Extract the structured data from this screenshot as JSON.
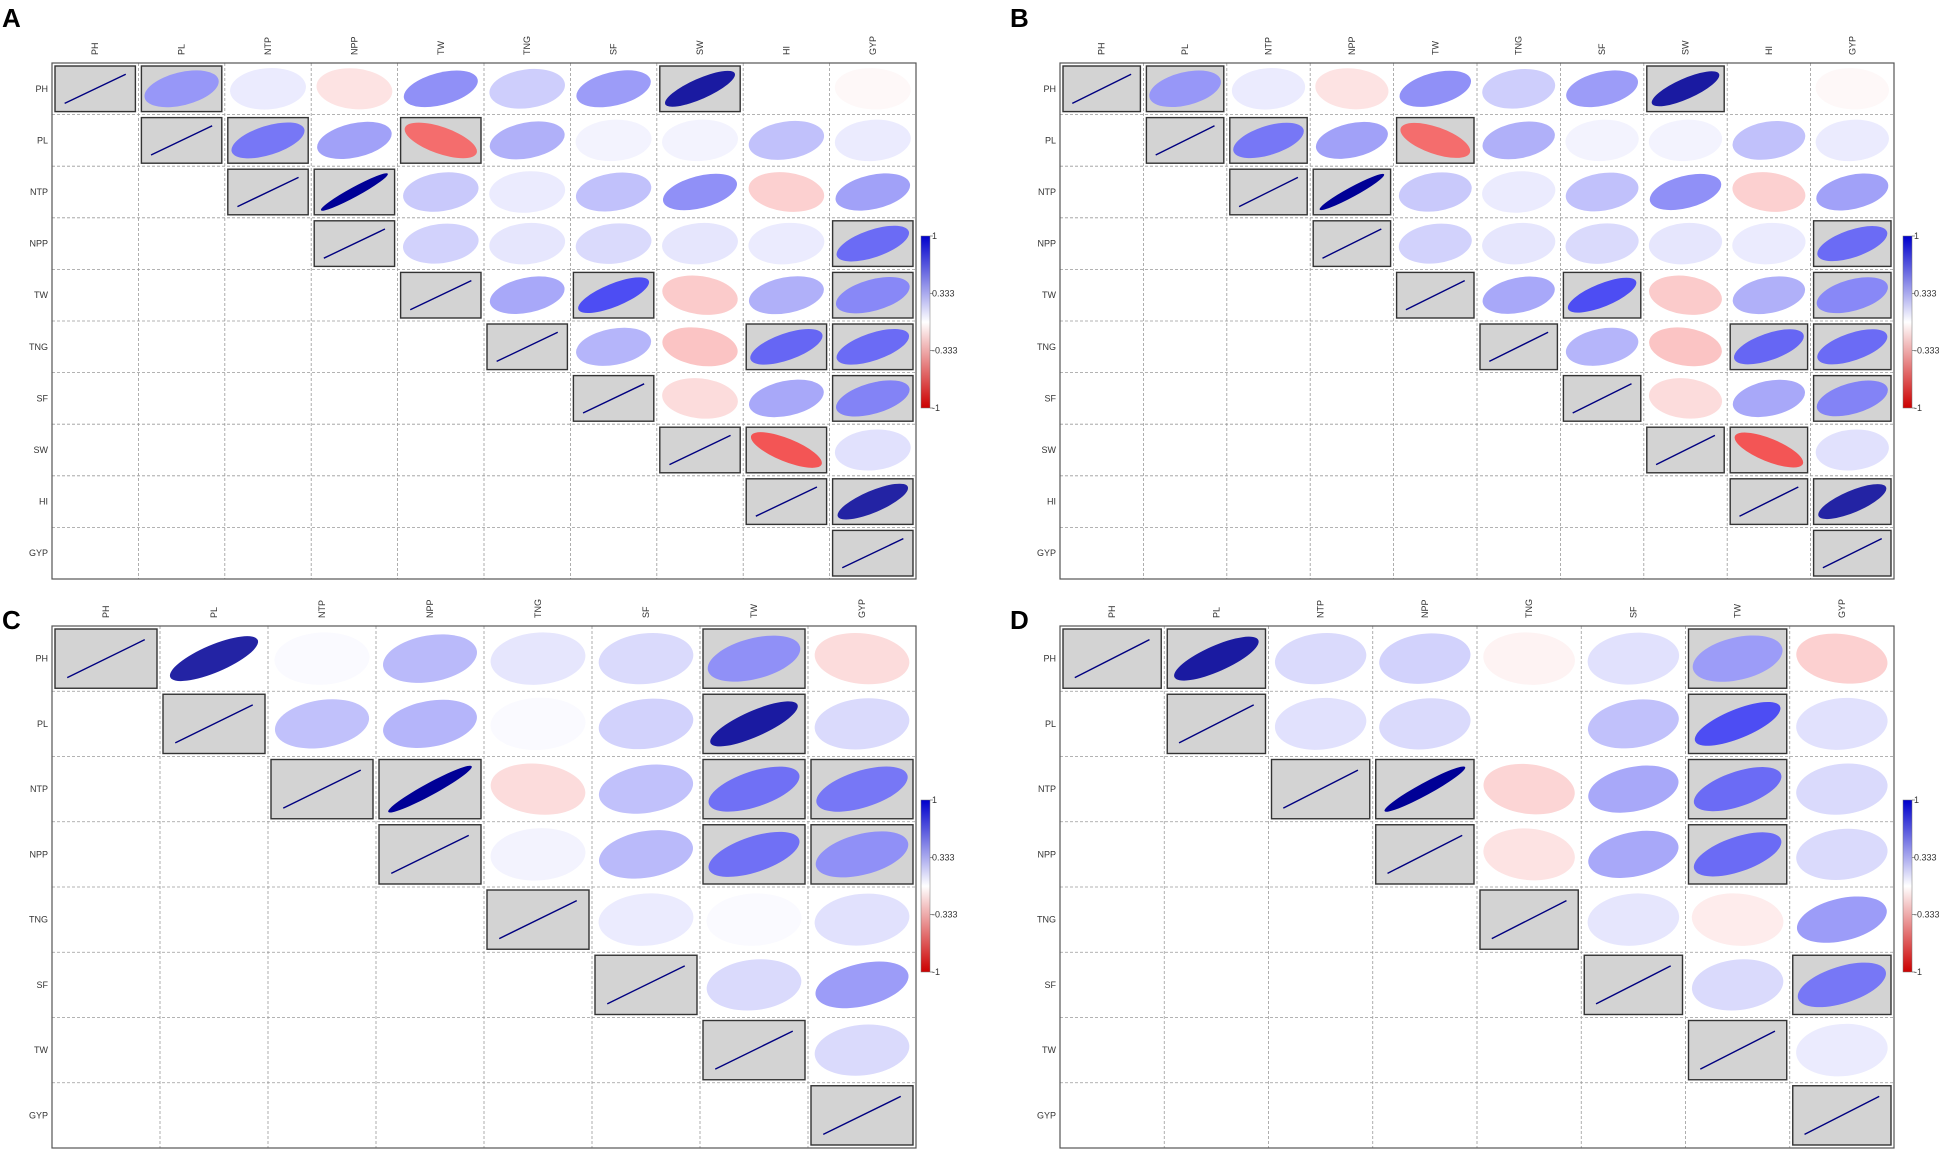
{
  "figure": {
    "panels": [
      {
        "letter": "A"
      },
      {
        "letter": "B"
      },
      {
        "letter": "C"
      },
      {
        "letter": "D"
      }
    ]
  },
  "colorbar": {
    "ticks": [
      "1",
      "0.333",
      "-0.333",
      "-1"
    ],
    "tick_values": [
      1,
      0.333,
      -0.333,
      -1
    ],
    "colors": {
      "high": "#0000cc",
      "mid": "#ffffff",
      "low": "#cc0000"
    }
  },
  "style": {
    "significant_box_fill": "#d3d3d3",
    "significant_box_stroke": "#333333",
    "diagonal_line_color": "#000080",
    "grid_line_color": "#9a9a9a"
  },
  "chart_data": [
    {
      "panel": "A",
      "type": "heatmap",
      "variables": [
        "PH",
        "PL",
        "NTP",
        "NPP",
        "TW",
        "TNG",
        "SF",
        "SW",
        "HI",
        "GYP"
      ],
      "matrix": [
        [
          1,
          0.42,
          0.08,
          -0.12,
          0.45,
          0.2,
          0.4,
          0.78,
          0.0,
          -0.03
        ],
        [
          null,
          1,
          0.55,
          0.38,
          -0.62,
          0.32,
          0.05,
          0.05,
          0.25,
          0.08
        ],
        [
          null,
          null,
          1,
          0.95,
          0.22,
          0.08,
          0.25,
          0.45,
          -0.2,
          0.38
        ],
        [
          null,
          null,
          null,
          1,
          0.18,
          0.1,
          0.15,
          0.1,
          0.08,
          0.6
        ],
        [
          null,
          null,
          null,
          null,
          1,
          0.35,
          0.72,
          -0.22,
          0.32,
          0.48
        ],
        [
          null,
          null,
          null,
          null,
          null,
          1,
          0.3,
          -0.25,
          0.62,
          0.6
        ],
        [
          null,
          null,
          null,
          null,
          null,
          null,
          1,
          -0.15,
          0.35,
          0.5
        ],
        [
          null,
          null,
          null,
          null,
          null,
          null,
          null,
          1,
          -0.72,
          0.12
        ],
        [
          null,
          null,
          null,
          null,
          null,
          null,
          null,
          null,
          1,
          0.75
        ],
        [
          null,
          null,
          null,
          null,
          null,
          null,
          null,
          null,
          null,
          1
        ]
      ],
      "significant": [
        [
          1,
          1,
          0,
          0,
          0,
          0,
          0,
          1,
          0,
          0
        ],
        [
          0,
          1,
          1,
          0,
          1,
          0,
          0,
          0,
          0,
          0
        ],
        [
          0,
          0,
          1,
          1,
          0,
          0,
          0,
          0,
          0,
          0
        ],
        [
          0,
          0,
          0,
          1,
          0,
          0,
          0,
          0,
          0,
          1
        ],
        [
          0,
          0,
          0,
          0,
          1,
          0,
          1,
          0,
          0,
          1
        ],
        [
          0,
          0,
          0,
          0,
          0,
          1,
          0,
          0,
          1,
          1
        ],
        [
          0,
          0,
          0,
          0,
          0,
          0,
          1,
          0,
          0,
          1
        ],
        [
          0,
          0,
          0,
          0,
          0,
          0,
          0,
          1,
          1,
          0
        ],
        [
          0,
          0,
          0,
          0,
          0,
          0,
          0,
          0,
          1,
          1
        ],
        [
          0,
          0,
          0,
          0,
          0,
          0,
          0,
          0,
          0,
          1
        ]
      ],
      "colorbar_range": [
        -1,
        1
      ]
    },
    {
      "panel": "B",
      "type": "heatmap",
      "variables": [
        "PH",
        "PL",
        "NTP",
        "NPP",
        "TW",
        "TNG",
        "SF",
        "SW",
        "HI",
        "GYP"
      ],
      "matrix": [
        [
          1,
          0.42,
          0.08,
          -0.12,
          0.45,
          0.2,
          0.4,
          0.78,
          0.0,
          -0.03
        ],
        [
          null,
          1,
          0.55,
          0.38,
          -0.62,
          0.32,
          0.05,
          0.05,
          0.25,
          0.08
        ],
        [
          null,
          null,
          1,
          0.95,
          0.22,
          0.08,
          0.25,
          0.45,
          -0.2,
          0.38
        ],
        [
          null,
          null,
          null,
          1,
          0.18,
          0.1,
          0.15,
          0.1,
          0.08,
          0.6
        ],
        [
          null,
          null,
          null,
          null,
          1,
          0.35,
          0.72,
          -0.22,
          0.32,
          0.48
        ],
        [
          null,
          null,
          null,
          null,
          null,
          1,
          0.3,
          -0.25,
          0.62,
          0.6
        ],
        [
          null,
          null,
          null,
          null,
          null,
          null,
          1,
          -0.15,
          0.35,
          0.5
        ],
        [
          null,
          null,
          null,
          null,
          null,
          null,
          null,
          1,
          -0.72,
          0.12
        ],
        [
          null,
          null,
          null,
          null,
          null,
          null,
          null,
          null,
          1,
          0.75
        ],
        [
          null,
          null,
          null,
          null,
          null,
          null,
          null,
          null,
          null,
          1
        ]
      ],
      "significant": [
        [
          1,
          1,
          0,
          0,
          0,
          0,
          0,
          1,
          0,
          0
        ],
        [
          0,
          1,
          1,
          0,
          1,
          0,
          0,
          0,
          0,
          0
        ],
        [
          0,
          0,
          1,
          1,
          0,
          0,
          0,
          0,
          0,
          0
        ],
        [
          0,
          0,
          0,
          1,
          0,
          0,
          0,
          0,
          0,
          1
        ],
        [
          0,
          0,
          0,
          0,
          1,
          0,
          1,
          0,
          0,
          1
        ],
        [
          0,
          0,
          0,
          0,
          0,
          1,
          0,
          0,
          1,
          1
        ],
        [
          0,
          0,
          0,
          0,
          0,
          0,
          1,
          0,
          0,
          1
        ],
        [
          0,
          0,
          0,
          0,
          0,
          0,
          0,
          1,
          1,
          0
        ],
        [
          0,
          0,
          0,
          0,
          0,
          0,
          0,
          0,
          1,
          1
        ],
        [
          0,
          0,
          0,
          0,
          0,
          0,
          0,
          0,
          0,
          1
        ]
      ],
      "colorbar_range": [
        -1,
        1
      ]
    },
    {
      "panel": "C",
      "type": "heatmap",
      "variables": [
        "PH",
        "PL",
        "NTP",
        "NPP",
        "TNG",
        "SF",
        "TW",
        "GYP"
      ],
      "matrix": [
        [
          1,
          0.75,
          0.02,
          0.28,
          0.1,
          0.15,
          0.45,
          -0.15
        ],
        [
          null,
          1,
          0.25,
          0.3,
          0.02,
          0.18,
          0.78,
          0.15
        ],
        [
          null,
          null,
          1,
          0.95,
          -0.15,
          0.25,
          0.58,
          0.55
        ],
        [
          null,
          null,
          null,
          1,
          0.05,
          0.28,
          0.58,
          0.45
        ],
        [
          null,
          null,
          null,
          null,
          1,
          0.08,
          0.02,
          0.12
        ],
        [
          null,
          null,
          null,
          null,
          null,
          1,
          0.15,
          0.4
        ],
        [
          null,
          null,
          null,
          null,
          null,
          null,
          1,
          0.15
        ],
        [
          null,
          null,
          null,
          null,
          null,
          null,
          null,
          1
        ]
      ],
      "significant": [
        [
          1,
          0,
          0,
          0,
          0,
          0,
          1,
          0
        ],
        [
          0,
          1,
          0,
          0,
          0,
          0,
          1,
          0
        ],
        [
          0,
          0,
          1,
          1,
          0,
          0,
          1,
          1
        ],
        [
          0,
          0,
          0,
          1,
          0,
          0,
          1,
          1
        ],
        [
          0,
          0,
          0,
          0,
          1,
          0,
          0,
          0
        ],
        [
          0,
          0,
          0,
          0,
          0,
          1,
          0,
          0
        ],
        [
          0,
          0,
          0,
          0,
          0,
          0,
          1,
          0
        ],
        [
          0,
          0,
          0,
          0,
          0,
          0,
          0,
          1
        ]
      ],
      "colorbar_range": [
        -1,
        1
      ]
    },
    {
      "panel": "D",
      "type": "heatmap",
      "variables": [
        "PH",
        "PL",
        "NTP",
        "NPP",
        "TNG",
        "SF",
        "TW",
        "GYP"
      ],
      "matrix": [
        [
          1,
          0.78,
          0.15,
          0.18,
          -0.05,
          0.12,
          0.4,
          -0.2
        ],
        [
          null,
          1,
          0.12,
          0.15,
          0.0,
          0.25,
          0.72,
          0.12
        ],
        [
          null,
          null,
          1,
          0.95,
          -0.18,
          0.35,
          0.6,
          0.15
        ],
        [
          null,
          null,
          null,
          1,
          -0.12,
          0.35,
          0.6,
          0.15
        ],
        [
          null,
          null,
          null,
          null,
          1,
          0.1,
          -0.08,
          0.4
        ],
        [
          null,
          null,
          null,
          null,
          null,
          1,
          0.15,
          0.55
        ],
        [
          null,
          null,
          null,
          null,
          null,
          null,
          1,
          0.08
        ],
        [
          null,
          null,
          null,
          null,
          null,
          null,
          null,
          1
        ]
      ],
      "significant": [
        [
          1,
          1,
          0,
          0,
          0,
          0,
          1,
          0
        ],
        [
          0,
          1,
          0,
          0,
          0,
          0,
          1,
          0
        ],
        [
          0,
          0,
          1,
          1,
          0,
          0,
          1,
          0
        ],
        [
          0,
          0,
          0,
          1,
          0,
          0,
          1,
          0
        ],
        [
          0,
          0,
          0,
          0,
          1,
          0,
          0,
          0
        ],
        [
          0,
          0,
          0,
          0,
          0,
          1,
          0,
          1
        ],
        [
          0,
          0,
          0,
          0,
          0,
          0,
          1,
          0
        ],
        [
          0,
          0,
          0,
          0,
          0,
          0,
          0,
          1
        ]
      ],
      "colorbar_range": [
        -1,
        1
      ]
    }
  ]
}
